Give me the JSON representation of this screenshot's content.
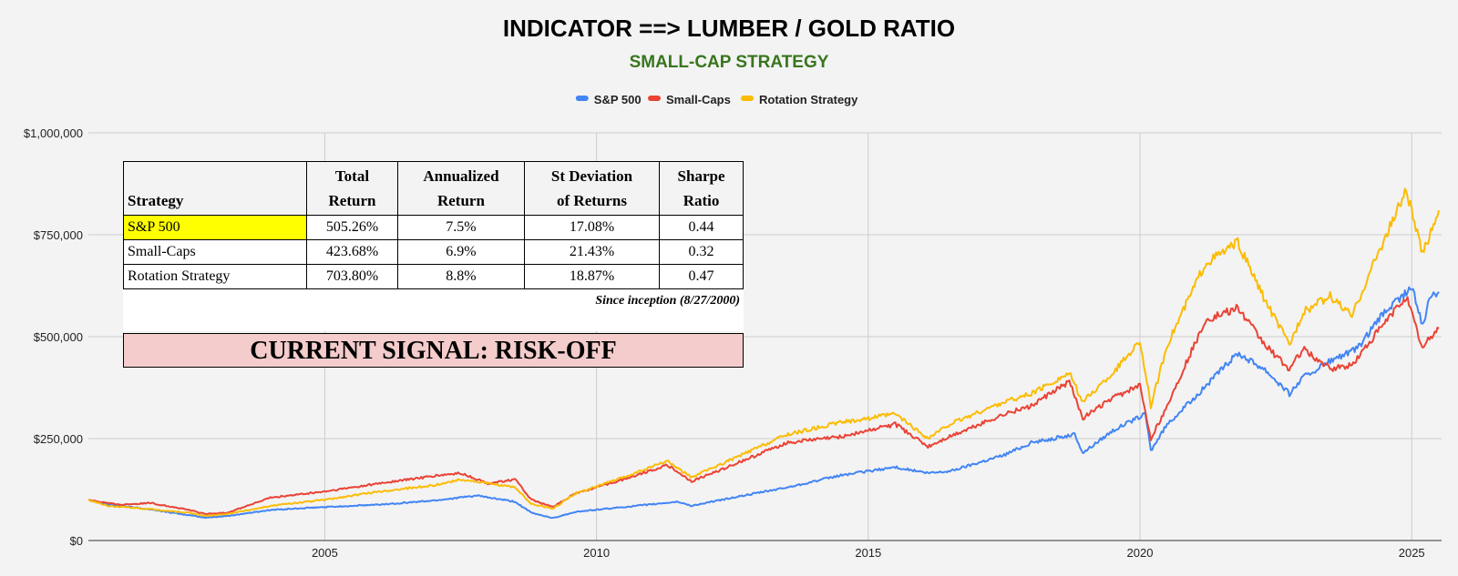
{
  "chart_data": {
    "type": "line",
    "title": "INDICATOR ==> LUMBER / GOLD RATIO",
    "subtitle": "SMALL-CAP STRATEGY",
    "xlabel": "",
    "ylabel": "",
    "xlim": [
      2000.65,
      2025.55
    ],
    "ylim": [
      0,
      1000000
    ],
    "x_ticks": [
      {
        "value": 2005,
        "label": "2005"
      },
      {
        "value": 2010,
        "label": "2010"
      },
      {
        "value": 2015,
        "label": "2015"
      },
      {
        "value": 2020,
        "label": "2020"
      },
      {
        "value": 2025,
        "label": "2025"
      }
    ],
    "y_ticks": [
      {
        "value": 0,
        "label": "$0"
      },
      {
        "value": 250000,
        "label": "$250,000"
      },
      {
        "value": 500000,
        "label": "$500,000"
      },
      {
        "value": 750000,
        "label": "$750,000"
      },
      {
        "value": 1000000,
        "label": "$1,000,000"
      }
    ],
    "grid": true,
    "legend_position": "top",
    "series": [
      {
        "name": "S&P 500",
        "color": "#4285f4",
        "points": [
          [
            2000.65,
            100000
          ],
          [
            2001.0,
            88000
          ],
          [
            2001.7,
            78000
          ],
          [
            2002.5,
            62000
          ],
          [
            2002.8,
            56000
          ],
          [
            2003.2,
            60000
          ],
          [
            2004.0,
            75000
          ],
          [
            2005.0,
            82000
          ],
          [
            2006.0,
            88000
          ],
          [
            2007.0,
            98000
          ],
          [
            2007.8,
            110000
          ],
          [
            2008.5,
            95000
          ],
          [
            2008.8,
            68000
          ],
          [
            2009.2,
            55000
          ],
          [
            2009.6,
            70000
          ],
          [
            2010.5,
            82000
          ],
          [
            2011.5,
            95000
          ],
          [
            2011.75,
            85000
          ],
          [
            2012.5,
            105000
          ],
          [
            2013.5,
            130000
          ],
          [
            2014.5,
            160000
          ],
          [
            2015.5,
            180000
          ],
          [
            2016.1,
            165000
          ],
          [
            2016.5,
            170000
          ],
          [
            2017.5,
            210000
          ],
          [
            2018.0,
            240000
          ],
          [
            2018.8,
            260000
          ],
          [
            2018.95,
            215000
          ],
          [
            2019.5,
            270000
          ],
          [
            2020.1,
            310000
          ],
          [
            2020.2,
            220000
          ],
          [
            2020.5,
            285000
          ],
          [
            2021.0,
            350000
          ],
          [
            2021.8,
            460000
          ],
          [
            2022.3,
            420000
          ],
          [
            2022.75,
            360000
          ],
          [
            2023.0,
            400000
          ],
          [
            2023.5,
            440000
          ],
          [
            2024.0,
            470000
          ],
          [
            2024.5,
            560000
          ],
          [
            2025.0,
            620000
          ],
          [
            2025.2,
            530000
          ],
          [
            2025.35,
            600000
          ],
          [
            2025.5,
            610000
          ]
        ]
      },
      {
        "name": "Small-Caps",
        "color": "#ea4335",
        "points": [
          [
            2000.65,
            100000
          ],
          [
            2001.2,
            88000
          ],
          [
            2001.8,
            92000
          ],
          [
            2002.5,
            75000
          ],
          [
            2002.8,
            65000
          ],
          [
            2003.2,
            68000
          ],
          [
            2004.0,
            105000
          ],
          [
            2005.0,
            120000
          ],
          [
            2006.0,
            140000
          ],
          [
            2007.0,
            158000
          ],
          [
            2007.5,
            165000
          ],
          [
            2008.0,
            140000
          ],
          [
            2008.5,
            150000
          ],
          [
            2008.8,
            100000
          ],
          [
            2009.2,
            82000
          ],
          [
            2009.6,
            115000
          ],
          [
            2010.5,
            150000
          ],
          [
            2011.3,
            185000
          ],
          [
            2011.75,
            145000
          ],
          [
            2012.5,
            185000
          ],
          [
            2013.5,
            240000
          ],
          [
            2014.5,
            255000
          ],
          [
            2015.5,
            285000
          ],
          [
            2016.1,
            230000
          ],
          [
            2016.5,
            255000
          ],
          [
            2017.5,
            310000
          ],
          [
            2018.0,
            330000
          ],
          [
            2018.7,
            390000
          ],
          [
            2018.95,
            300000
          ],
          [
            2019.5,
            350000
          ],
          [
            2020.0,
            380000
          ],
          [
            2020.2,
            250000
          ],
          [
            2020.5,
            330000
          ],
          [
            2021.2,
            540000
          ],
          [
            2021.8,
            570000
          ],
          [
            2022.3,
            480000
          ],
          [
            2022.75,
            420000
          ],
          [
            2023.0,
            470000
          ],
          [
            2023.5,
            420000
          ],
          [
            2023.9,
            430000
          ],
          [
            2024.3,
            500000
          ],
          [
            2024.9,
            600000
          ],
          [
            2025.2,
            470000
          ],
          [
            2025.35,
            500000
          ],
          [
            2025.5,
            520000
          ]
        ]
      },
      {
        "name": "Rotation Strategy",
        "color": "#fbbc04",
        "points": [
          [
            2000.65,
            100000
          ],
          [
            2001.0,
            85000
          ],
          [
            2001.5,
            80000
          ],
          [
            2002.5,
            68000
          ],
          [
            2002.8,
            60000
          ],
          [
            2003.2,
            65000
          ],
          [
            2004.0,
            85000
          ],
          [
            2005.0,
            100000
          ],
          [
            2006.0,
            120000
          ],
          [
            2007.0,
            135000
          ],
          [
            2007.5,
            150000
          ],
          [
            2008.5,
            130000
          ],
          [
            2008.8,
            90000
          ],
          [
            2009.2,
            78000
          ],
          [
            2009.6,
            115000
          ],
          [
            2010.5,
            155000
          ],
          [
            2011.3,
            195000
          ],
          [
            2011.75,
            155000
          ],
          [
            2012.5,
            200000
          ],
          [
            2013.5,
            260000
          ],
          [
            2014.5,
            290000
          ],
          [
            2015.5,
            310000
          ],
          [
            2016.1,
            250000
          ],
          [
            2016.5,
            285000
          ],
          [
            2017.5,
            340000
          ],
          [
            2018.0,
            360000
          ],
          [
            2018.7,
            410000
          ],
          [
            2018.95,
            340000
          ],
          [
            2019.5,
            410000
          ],
          [
            2020.0,
            490000
          ],
          [
            2020.2,
            330000
          ],
          [
            2020.5,
            480000
          ],
          [
            2021.2,
            680000
          ],
          [
            2021.8,
            730000
          ],
          [
            2022.3,
            590000
          ],
          [
            2022.75,
            480000
          ],
          [
            2023.0,
            560000
          ],
          [
            2023.5,
            600000
          ],
          [
            2023.9,
            550000
          ],
          [
            2024.3,
            680000
          ],
          [
            2024.9,
            860000
          ],
          [
            2025.2,
            700000
          ],
          [
            2025.35,
            760000
          ],
          [
            2025.5,
            810000
          ]
        ]
      }
    ],
    "table": {
      "headers": [
        {
          "line1": "",
          "line2": "Strategy"
        },
        {
          "line1": "Total",
          "line2": "Return"
        },
        {
          "line1": "Annualized",
          "line2": "Return"
        },
        {
          "line1": "St Deviation",
          "line2": "of Returns"
        },
        {
          "line1": "Sharpe",
          "line2": "Ratio"
        }
      ],
      "rows": [
        {
          "strategy": "S&P 500",
          "total_return": "505.26%",
          "annualized_return": "7.5%",
          "st_deviation": "17.08%",
          "sharpe_ratio": "0.44",
          "highlight_color": "#ffff00"
        },
        {
          "strategy": "Small-Caps",
          "total_return": "423.68%",
          "annualized_return": "6.9%",
          "st_deviation": "21.43%",
          "sharpe_ratio": "0.32"
        },
        {
          "strategy": "Rotation Strategy",
          "total_return": "703.80%",
          "annualized_return": "8.8%",
          "st_deviation": "18.87%",
          "sharpe_ratio": "0.47"
        }
      ],
      "note": "Since inception (8/27/2000)"
    },
    "signal": {
      "text": "CURRENT SIGNAL: RISK-OFF",
      "color": "#f4cccc"
    }
  }
}
